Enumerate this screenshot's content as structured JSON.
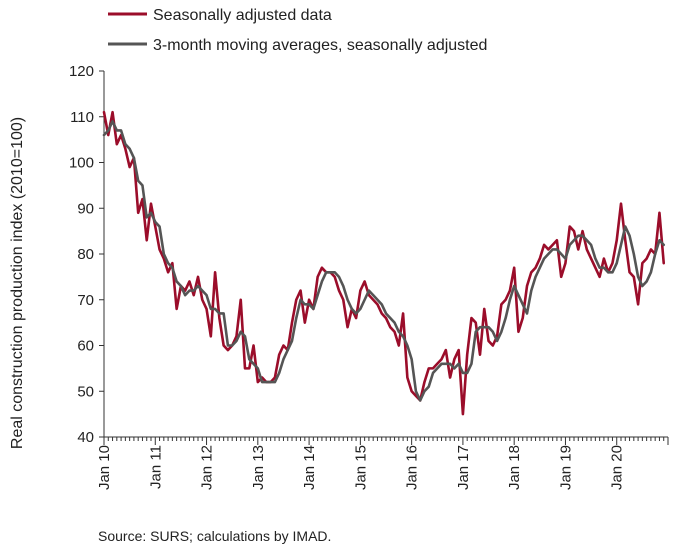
{
  "chart_data": {
    "type": "line",
    "ylabel": "Real construction production index (2010=100)",
    "ylim": [
      40,
      120
    ],
    "yticks": [
      40,
      50,
      60,
      70,
      80,
      90,
      100,
      110,
      120
    ],
    "xtick_labels": [
      "Jan 10",
      "Jan 11",
      "Jan 12",
      "Jan 13",
      "Jan 14",
      "Jan 15",
      "Jan 16",
      "Jan 17",
      "Jan 18",
      "Jan 19",
      "Jan 20"
    ],
    "x_start": "2010-01",
    "x_end": "2020-12",
    "grid": false,
    "legend_position": "top",
    "source": "Source: SURS; calculations by IMAD.",
    "series": [
      {
        "name": "Seasonally adjusted data",
        "color": "#9b0d2a",
        "values": [
          111,
          106,
          111,
          104,
          106,
          103,
          99,
          101,
          89,
          92,
          83,
          91,
          86,
          81,
          79,
          76,
          78,
          68,
          73,
          72,
          74,
          71,
          75,
          70,
          68,
          62,
          76,
          66,
          60,
          59,
          60,
          62,
          70,
          55,
          55,
          60,
          52,
          53,
          52,
          52,
          53,
          58,
          60,
          59,
          65,
          70,
          72,
          65,
          70,
          68,
          75,
          77,
          76,
          76,
          75,
          72,
          70,
          64,
          68,
          66,
          72,
          74,
          71,
          70,
          69,
          67,
          66,
          64,
          63,
          60,
          67,
          53,
          50,
          49,
          48,
          52,
          55,
          55,
          56,
          57,
          59,
          53,
          57,
          59,
          45,
          58,
          66,
          65,
          58,
          68,
          61,
          60,
          62,
          69,
          70,
          72,
          77,
          63,
          66,
          73,
          76,
          77,
          79,
          82,
          81,
          82,
          83,
          75,
          78,
          86,
          85,
          81,
          85,
          81,
          79,
          77,
          75,
          79,
          76,
          78,
          83,
          91,
          83,
          76,
          75,
          69,
          78,
          79,
          81,
          80,
          89,
          78
        ]
      },
      {
        "name": "3-month moving averages, seasonally adjusted",
        "color": "#555555",
        "values": [
          106,
          107,
          109,
          107,
          107,
          104,
          103,
          101,
          96,
          95,
          88,
          89,
          87,
          86,
          80,
          78,
          77,
          74,
          73,
          71,
          72,
          72,
          73,
          72,
          71,
          68,
          68,
          67,
          67,
          60,
          60,
          61,
          63,
          62,
          57,
          56,
          55,
          52,
          52,
          52,
          52,
          54,
          57,
          59,
          61,
          66,
          70,
          69,
          69,
          68,
          71,
          74,
          76,
          76,
          76,
          75,
          73,
          70,
          68,
          67,
          68,
          70,
          72,
          71,
          70,
          69,
          67,
          66,
          65,
          63,
          62,
          60,
          57,
          50,
          48,
          50,
          51,
          54,
          55,
          56,
          56,
          56,
          55,
          56,
          54,
          54,
          56,
          63,
          64,
          64,
          64,
          63,
          61,
          63,
          66,
          70,
          73,
          71,
          69,
          67,
          72,
          75,
          77,
          79,
          80,
          81,
          81,
          80,
          79,
          82,
          83,
          84,
          84,
          83,
          82,
          79,
          77,
          77,
          76,
          76,
          78,
          82,
          86,
          84,
          80,
          75,
          73,
          74,
          76,
          80,
          83,
          82
        ]
      }
    ]
  }
}
